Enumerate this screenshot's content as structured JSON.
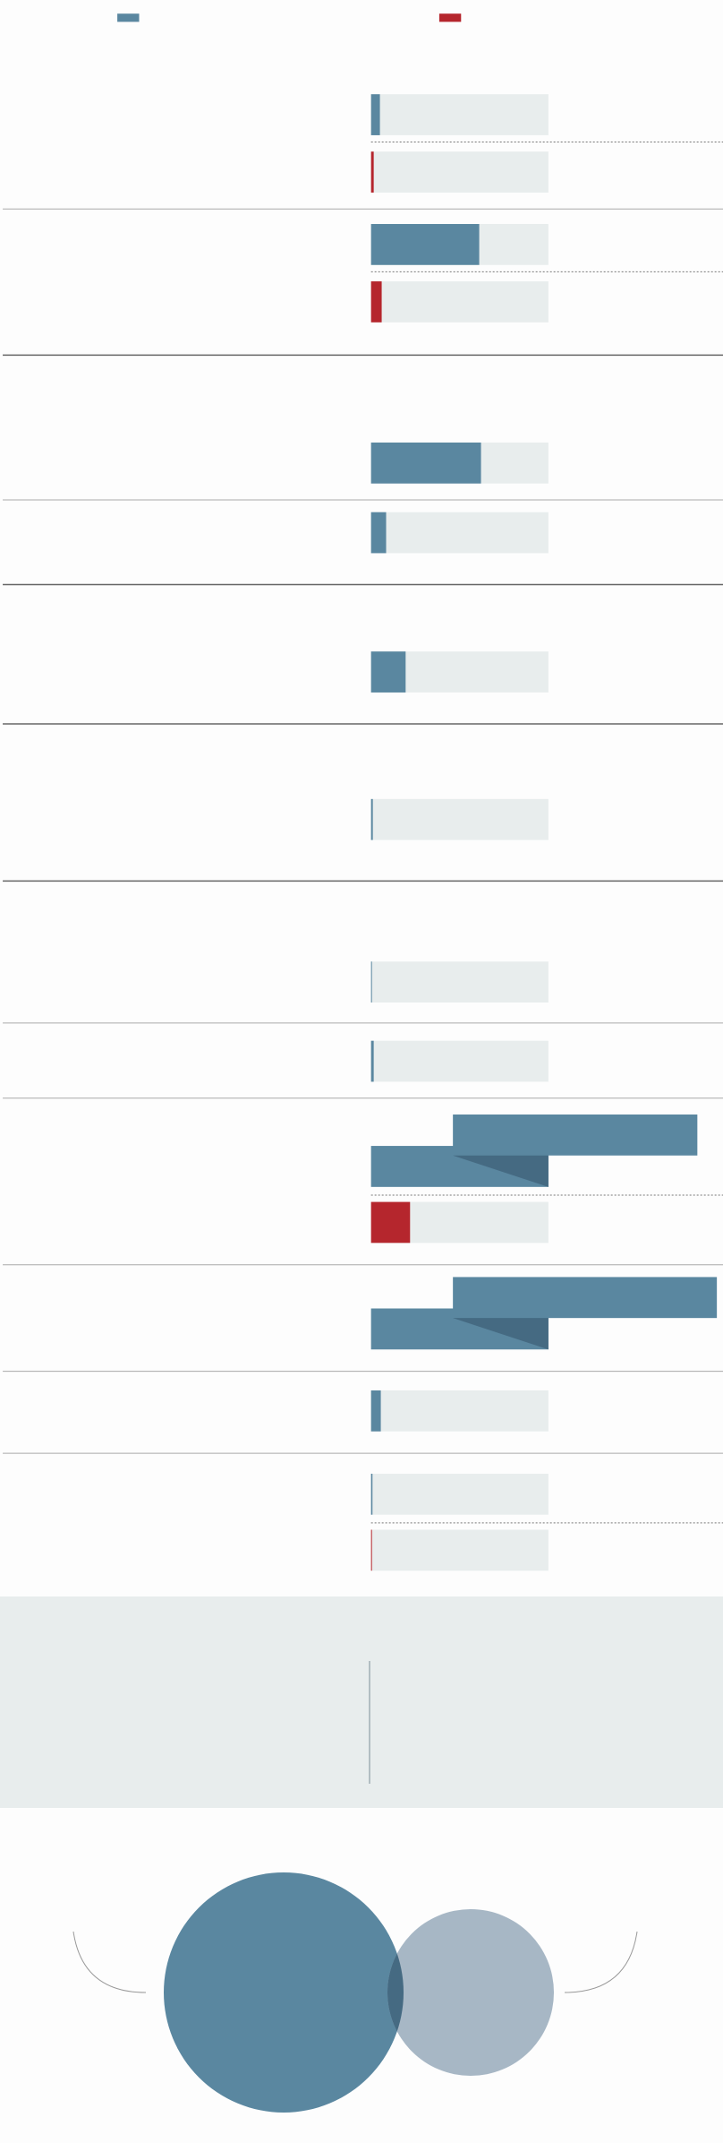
{
  "series": [
    {
      "color": "#5a87a0"
    },
    {
      "color": "#b5262d"
    }
  ],
  "rows": [
    {
      "series": 0,
      "value": 5
    },
    {
      "series": 1,
      "value": 1.5
    },
    {
      "series": 0,
      "value": 61
    },
    {
      "series": 1,
      "value": 6
    },
    {
      "series": 0,
      "value": 62
    },
    {
      "series": 0,
      "value": 8.5
    },
    {
      "series": 0,
      "value": 19.5
    },
    {
      "series": 0,
      "value": 1
    },
    {
      "series": 0,
      "value": 0.5
    },
    {
      "series": 0,
      "value": 1.5
    },
    {
      "series": 0,
      "value": 184
    },
    {
      "series": 1,
      "value": 22
    },
    {
      "series": 0,
      "value": 195
    },
    {
      "series": 0,
      "value": 5.5
    },
    {
      "series": 0,
      "value": 0.8
    },
    {
      "series": 1,
      "value": 0.4
    }
  ]
}
